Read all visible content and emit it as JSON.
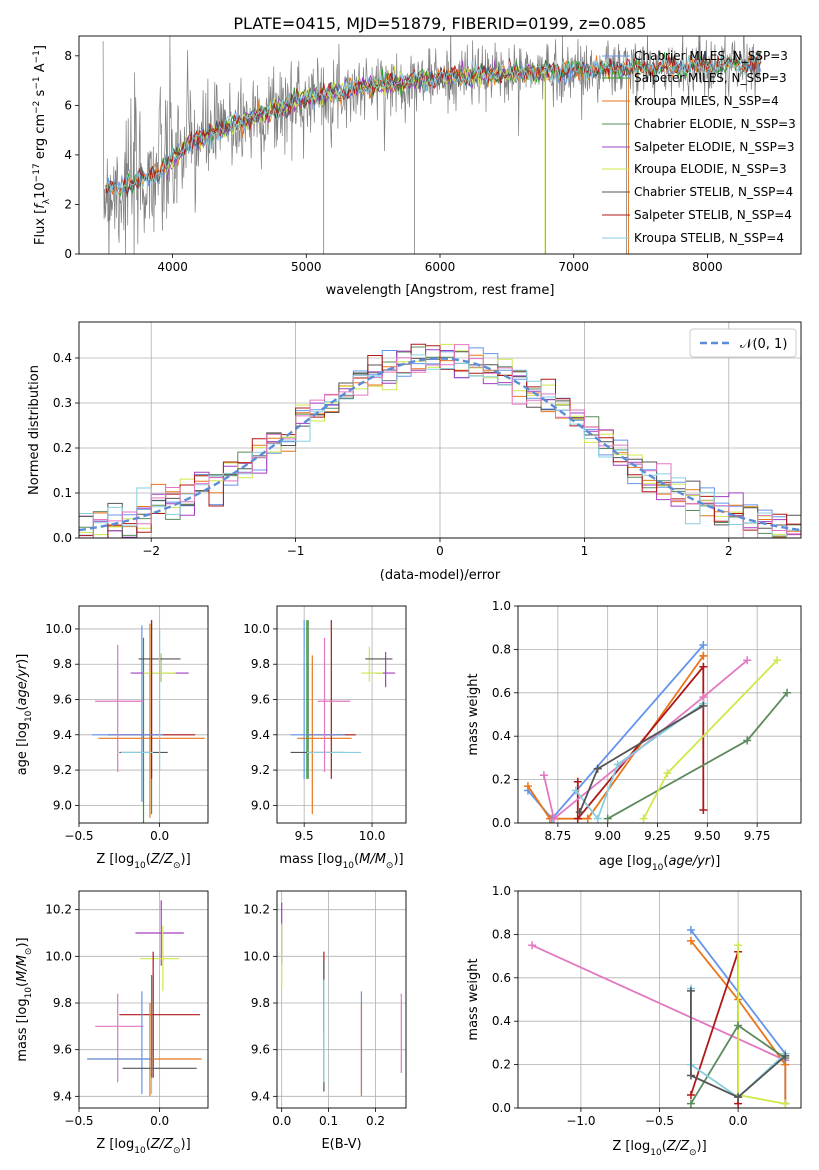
{
  "figure": {
    "title": "PLATE=0415, MJD=51879, FIBERID=0199, z=0.085"
  },
  "colors": {
    "chabrier_miles": "#6495ed",
    "salpeter_miles": "#2ca02c",
    "kroupa_miles": "#e8761b",
    "chabrier_elodie": "#5b8a5b",
    "salpeter_elodie": "#a23fbf",
    "kroupa_elodie": "#cfe84a",
    "chabrier_stelib": "#555555",
    "salpeter_stelib": "#b01818",
    "kroupa_stelib": "#87cfe0",
    "pink": "#e377c2",
    "data": "#7f7f7f"
  },
  "legend_spectrum": [
    "Chabrier MILES, N_SSP=3",
    "Salpeter MILES, N_SSP=3",
    "Kroupa MILES, N_SSP=4",
    "Chabrier ELODIE, N_SSP=3",
    "Salpeter ELODIE, N_SSP=3",
    "Kroupa ELODIE, N_SSP=3",
    "Chabrier STELIB, N_SSP=4",
    "Salpeter STELIB, N_SSP=4",
    "Kroupa STELIB, N_SSP=4"
  ],
  "legend_hist": "𝒩(0, 1)",
  "chart_data": [
    {
      "id": "spectrum",
      "type": "line",
      "xlabel": "wavelength [Angstrom, rest frame]",
      "ylabel": "Flux [f_λ 10^-17 erg cm^-2 s^-1 A^-1]",
      "xlim": [
        3300,
        8700
      ],
      "ylim": [
        0,
        8.8
      ],
      "xticks": [
        4000,
        5000,
        6000,
        7000,
        8000
      ],
      "yticks": [
        0,
        2,
        4,
        6,
        8
      ],
      "continuum": {
        "x": [
          3500,
          3700,
          3900,
          4100,
          4300,
          4600,
          5000,
          5500,
          6000,
          6500,
          7000,
          7400,
          8000,
          8400
        ],
        "y": [
          2.6,
          2.8,
          3.3,
          4.4,
          4.9,
          5.5,
          6.3,
          6.8,
          7.1,
          7.3,
          7.4,
          7.5,
          7.6,
          7.7
        ]
      }
    },
    {
      "id": "residuals",
      "type": "step",
      "xlabel": "(data-model)/error",
      "ylabel": "Normed distribution",
      "xlim": [
        -2.5,
        2.5
      ],
      "ylim": [
        0,
        0.48
      ],
      "xticks": [
        -2,
        -1,
        0,
        1,
        2
      ],
      "yticks": [
        0.0,
        0.1,
        0.2,
        0.3,
        0.4
      ],
      "bin_width": 0.1,
      "gaussian": {
        "mean": 0,
        "sigma": 1
      }
    },
    {
      "id": "age_vs_z",
      "type": "errorbar",
      "xlabel": "Z [log10(Z/Z☉)]",
      "ylabel": "age [log10(age/yr)]",
      "xlim": [
        -0.5,
        0.3
      ],
      "ylim": [
        8.9,
        10.13
      ],
      "xticks": [
        -0.5,
        0.0
      ],
      "yticks": [
        9.0,
        9.2,
        9.4,
        9.6,
        9.8,
        10.0
      ],
      "points": [
        {
          "c": "chabrier_miles",
          "x": -0.11,
          "y": 9.52,
          "xe": 0.0,
          "ye": 0.5
        },
        {
          "c": "salpeter_miles",
          "x": -0.1,
          "y": 9.4,
          "xe": 0.0,
          "ye": 0.55
        },
        {
          "c": "kroupa_miles",
          "x": -0.05,
          "y": 9.38,
          "xe": 0.33,
          "ye": 0.0
        },
        {
          "c": "kroupa_miles",
          "x": -0.06,
          "y": 9.48,
          "xe": 0.0,
          "ye": 0.55
        },
        {
          "c": "chabrier_elodie",
          "x": -0.05,
          "y": 9.5,
          "xe": 0.0,
          "ye": 0.55
        },
        {
          "c": "salpeter_elodie",
          "x": 0.0,
          "y": 9.75,
          "xe": 0.18,
          "ye": 0.0
        },
        {
          "c": "salpeter_elodie",
          "x": 0.01,
          "y": 9.78,
          "xe": 0.0,
          "ye": 0.08
        },
        {
          "c": "kroupa_elodie",
          "x": 0.0,
          "y": 9.75,
          "xe": 0.1,
          "ye": 0.0
        },
        {
          "c": "kroupa_elodie",
          "x": 0.01,
          "y": 9.78,
          "xe": 0.0,
          "ye": 0.08
        },
        {
          "c": "chabrier_stelib",
          "x": 0.0,
          "y": 9.83,
          "xe": 0.13,
          "ye": 0.0
        },
        {
          "c": "chabrier_stelib",
          "x": -0.1,
          "y": 9.3,
          "xe": 0.15,
          "ye": 0.0
        },
        {
          "c": "salpeter_stelib",
          "x": -0.05,
          "y": 9.4,
          "xe": 0.27,
          "ye": 0.0
        },
        {
          "c": "salpeter_stelib",
          "x": -0.05,
          "y": 9.6,
          "xe": 0.0,
          "ye": 0.45
        },
        {
          "c": "kroupa_stelib",
          "x": -0.14,
          "y": 9.3,
          "xe": 0.1,
          "ye": 0.0
        },
        {
          "c": "chabrier_miles",
          "x": -0.2,
          "y": 9.4,
          "xe": 0.22,
          "ye": 0.0
        },
        {
          "c": "pink",
          "x": -0.25,
          "y": 9.59,
          "xe": 0.15,
          "ye": 0.0
        },
        {
          "c": "pink",
          "x": -0.26,
          "y": 9.55,
          "xe": 0.0,
          "ye": 0.36
        },
        {
          "c": "kroupa_stelib",
          "x": 0.0,
          "y": 9.6,
          "xe": 0.0,
          "ye": 0.4
        }
      ]
    },
    {
      "id": "age_vs_mass",
      "type": "errorbar",
      "xlabel": "mass [log10(M/M☉)]",
      "ylabel": "",
      "xlim": [
        9.3,
        10.25
      ],
      "ylim": [
        8.9,
        10.13
      ],
      "xticks": [
        9.5,
        10.0
      ],
      "yticks": [
        9.0,
        9.2,
        9.4,
        9.6,
        9.8,
        10.0
      ],
      "points": [
        {
          "c": "chabrier_miles",
          "x": 9.5,
          "y": 9.6,
          "xe": 0.0,
          "ye": 0.45
        },
        {
          "c": "salpeter_miles",
          "x": 9.52,
          "y": 9.6,
          "xe": 0.0,
          "ye": 0.45
        },
        {
          "c": "kroupa_miles",
          "x": 9.56,
          "y": 9.4,
          "xe": 0.0,
          "ye": 0.45
        },
        {
          "c": "kroupa_miles",
          "x": 9.65,
          "y": 9.38,
          "xe": 0.2,
          "ye": 0.0
        },
        {
          "c": "chabrier_elodie",
          "x": 9.53,
          "y": 9.6,
          "xe": 0.0,
          "ye": 0.45
        },
        {
          "c": "salpeter_elodie",
          "x": 10.1,
          "y": 9.75,
          "xe": 0.07,
          "ye": 0.0
        },
        {
          "c": "salpeter_elodie",
          "x": 10.1,
          "y": 9.77,
          "xe": 0.0,
          "ye": 0.1
        },
        {
          "c": "kroupa_elodie",
          "x": 10.0,
          "y": 9.75,
          "xe": 0.08,
          "ye": 0.0
        },
        {
          "c": "kroupa_elodie",
          "x": 9.98,
          "y": 9.8,
          "xe": 0.0,
          "ye": 0.1
        },
        {
          "c": "chabrier_stelib",
          "x": 10.05,
          "y": 9.83,
          "xe": 0.1,
          "ye": 0.0
        },
        {
          "c": "chabrier_stelib",
          "x": 9.6,
          "y": 9.3,
          "xe": 0.2,
          "ye": 0.0
        },
        {
          "c": "salpeter_stelib",
          "x": 9.7,
          "y": 9.4,
          "xe": 0.18,
          "ye": 0.0
        },
        {
          "c": "salpeter_stelib",
          "x": 9.7,
          "y": 9.6,
          "xe": 0.0,
          "ye": 0.45
        },
        {
          "c": "kroupa_stelib",
          "x": 9.72,
          "y": 9.3,
          "xe": 0.2,
          "ye": 0.0
        },
        {
          "c": "chabrier_miles",
          "x": 9.6,
          "y": 9.4,
          "xe": 0.2,
          "ye": 0.0
        },
        {
          "c": "pink",
          "x": 9.72,
          "y": 9.59,
          "xe": 0.12,
          "ye": 0.0
        },
        {
          "c": "pink",
          "x": 9.65,
          "y": 9.57,
          "xe": 0.0,
          "ye": 0.38
        }
      ]
    },
    {
      "id": "weight_vs_age",
      "type": "line",
      "xlabel": "age [log10(age/yr)]",
      "ylabel": "mass weight",
      "xlim": [
        8.55,
        9.97
      ],
      "ylim": [
        0,
        1.0
      ],
      "xticks": [
        8.75,
        9.0,
        9.25,
        9.5,
        9.75
      ],
      "yticks": [
        0.0,
        0.2,
        0.4,
        0.6,
        0.8,
        1.0
      ],
      "series": [
        {
          "c": "chabrier_miles",
          "x": [
            8.6,
            8.72,
            9.48
          ],
          "y": [
            0.15,
            0.02,
            0.82
          ]
        },
        {
          "c": "kroupa_miles",
          "x": [
            8.6,
            8.71,
            8.9,
            9.48,
            9.48
          ],
          "y": [
            0.17,
            0.02,
            0.02,
            0.77,
            0.77
          ]
        },
        {
          "c": "salpeter_stelib",
          "x": [
            8.85,
            8.85,
            9.48,
            9.48
          ],
          "y": [
            0.19,
            0.02,
            0.72,
            0.06
          ]
        },
        {
          "c": "pink",
          "x": [
            8.68,
            8.73,
            9.48,
            9.7
          ],
          "y": [
            0.22,
            0.02,
            0.58,
            0.75
          ]
        },
        {
          "c": "chabrier_elodie",
          "x": [
            9.0,
            9.7,
            9.9
          ],
          "y": [
            0.02,
            0.38,
            0.6
          ]
        },
        {
          "c": "kroupa_elodie",
          "x": [
            9.18,
            9.3,
            9.85
          ],
          "y": [
            0.02,
            0.23,
            0.75
          ]
        },
        {
          "c": "kroupa_stelib",
          "x": [
            8.84,
            8.95,
            9.05,
            9.48
          ],
          "y": [
            0.15,
            0.02,
            0.27,
            0.55
          ]
        },
        {
          "c": "chabrier_stelib",
          "x": [
            8.86,
            8.95,
            9.48
          ],
          "y": [
            0.05,
            0.25,
            0.54
          ]
        }
      ]
    },
    {
      "id": "mass_vs_z",
      "type": "errorbar",
      "xlabel": "Z [log10(Z/Z☉)]",
      "ylabel": "mass [log10(M/M☉)]",
      "xlim": [
        -0.5,
        0.3
      ],
      "ylim": [
        9.35,
        10.28
      ],
      "xticks": [
        -0.5,
        0.0
      ],
      "yticks": [
        9.4,
        9.6,
        9.8,
        10.0,
        10.2
      ],
      "points": [
        {
          "c": "salpeter_elodie",
          "x": 0.0,
          "y": 10.1,
          "xe": 0.15,
          "ye": 0.0
        },
        {
          "c": "salpeter_elodie",
          "x": 0.01,
          "y": 10.1,
          "xe": 0.0,
          "ye": 0.14
        },
        {
          "c": "kroupa_elodie",
          "x": 0.0,
          "y": 9.99,
          "xe": 0.12,
          "ye": 0.0
        },
        {
          "c": "kroupa_elodie",
          "x": 0.02,
          "y": 9.99,
          "xe": 0.0,
          "ye": 0.14
        },
        {
          "c": "salpeter_stelib",
          "x": 0.0,
          "y": 9.75,
          "xe": 0.25,
          "ye": 0.0
        },
        {
          "c": "salpeter_stelib",
          "x": -0.04,
          "y": 9.75,
          "xe": 0.0,
          "ye": 0.27
        },
        {
          "c": "pink",
          "x": -0.25,
          "y": 9.7,
          "xe": 0.15,
          "ye": 0.0
        },
        {
          "c": "pink",
          "x": -0.26,
          "y": 9.65,
          "xe": 0.0,
          "ye": 0.19
        },
        {
          "c": "kroupa_miles",
          "x": -0.09,
          "y": 9.56,
          "xe": 0.35,
          "ye": 0.0
        },
        {
          "c": "kroupa_miles",
          "x": -0.06,
          "y": 9.6,
          "xe": 0.0,
          "ye": 0.2
        },
        {
          "c": "chabrier_miles",
          "x": -0.11,
          "y": 9.63,
          "xe": 0.0,
          "ye": 0.22
        },
        {
          "c": "chabrier_stelib",
          "x": 0.0,
          "y": 9.52,
          "xe": 0.23,
          "ye": 0.0
        },
        {
          "c": "chabrier_miles",
          "x": -0.25,
          "y": 9.56,
          "xe": 0.2,
          "ye": 0.0
        },
        {
          "c": "kroupa_stelib",
          "x": -0.05,
          "y": 9.66,
          "xe": 0.0,
          "ye": 0.25
        },
        {
          "c": "chabrier_elodie",
          "x": -0.05,
          "y": 9.7,
          "xe": 0.0,
          "ye": 0.22
        }
      ]
    },
    {
      "id": "mass_vs_ebv",
      "type": "errorbar",
      "xlabel": "E(B-V)",
      "ylabel": "",
      "xlim": [
        -0.01,
        0.265
      ],
      "ylim": [
        9.35,
        10.28
      ],
      "xticks": [
        0.0,
        0.1,
        0.2
      ],
      "yticks": [
        9.4,
        9.6,
        9.8,
        10.0,
        10.2
      ],
      "points": [
        {
          "c": "salpeter_elodie",
          "x": 0.0,
          "y": 10.1,
          "xe": 0.0,
          "ye": 0.13
        },
        {
          "c": "kroupa_elodie",
          "x": 0.0,
          "y": 10.0,
          "xe": 0.0,
          "ye": 0.14
        },
        {
          "c": "salpeter_stelib",
          "x": 0.09,
          "y": 9.85,
          "xe": 0.0,
          "ye": 0.17
        },
        {
          "c": "chabrier_stelib",
          "x": 0.09,
          "y": 9.7,
          "xe": 0.0,
          "ye": 0.28
        },
        {
          "c": "kroupa_stelib",
          "x": 0.09,
          "y": 9.68,
          "xe": 0.0,
          "ye": 0.22
        },
        {
          "c": "chabrier_miles",
          "x": 0.17,
          "y": 9.63,
          "xe": 0.0,
          "ye": 0.22
        },
        {
          "c": "kroupa_miles",
          "x": 0.17,
          "y": 9.6,
          "xe": 0.0,
          "ye": 0.2
        },
        {
          "c": "pink",
          "x": 0.255,
          "y": 9.67,
          "xe": 0.0,
          "ye": 0.17
        }
      ]
    },
    {
      "id": "weight_vs_z",
      "type": "line",
      "xlabel": "Z [log10(Z/Z☉)]",
      "ylabel": "mass weight",
      "xlim": [
        -1.4,
        0.4
      ],
      "ylim": [
        0,
        1.0
      ],
      "xticks": [
        -1.0,
        -0.5,
        0.0
      ],
      "yticks": [
        0.0,
        0.2,
        0.4,
        0.6,
        0.8,
        1.0
      ],
      "series": [
        {
          "c": "pink",
          "x": [
            -1.31,
            0.3
          ],
          "y": [
            0.75,
            0.22
          ]
        },
        {
          "c": "chabrier_miles",
          "x": [
            -0.3,
            0.3,
            0.3
          ],
          "y": [
            0.82,
            0.25,
            0.02
          ]
        },
        {
          "c": "kroupa_miles",
          "x": [
            -0.3,
            0.0,
            0.3,
            0.3
          ],
          "y": [
            0.77,
            0.5,
            0.2,
            0.02
          ]
        },
        {
          "c": "salpeter_stelib",
          "x": [
            -0.3,
            0.0,
            0.0
          ],
          "y": [
            0.06,
            0.72,
            0.02
          ]
        },
        {
          "c": "kroupa_elodie",
          "x": [
            0.0,
            0.0,
            0.3
          ],
          "y": [
            0.75,
            0.06,
            0.02
          ]
        },
        {
          "c": "chabrier_elodie",
          "x": [
            -0.3,
            0.0,
            0.3
          ],
          "y": [
            0.02,
            0.38,
            0.23
          ]
        },
        {
          "c": "kroupa_stelib",
          "x": [
            -0.3,
            -0.3,
            0.0,
            0.3
          ],
          "y": [
            0.55,
            0.2,
            0.05,
            0.25
          ]
        },
        {
          "c": "chabrier_stelib",
          "x": [
            -0.3,
            -0.3,
            0.0,
            0.3
          ],
          "y": [
            0.54,
            0.15,
            0.05,
            0.24
          ]
        }
      ]
    }
  ]
}
